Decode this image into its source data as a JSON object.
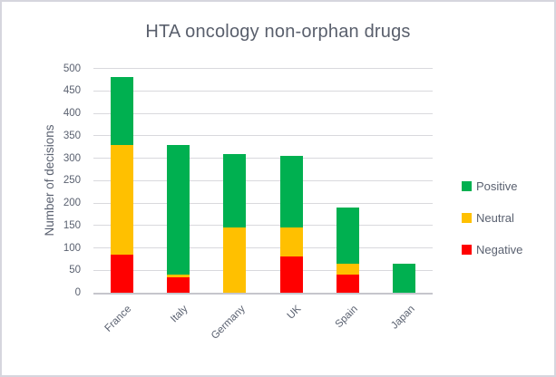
{
  "window": {
    "background": "#FFFFFF",
    "border_color": "#D6D6DE"
  },
  "chart_data": {
    "type": "bar",
    "stacked": true,
    "title": "HTA oncology non-orphan drugs",
    "xlabel": "",
    "ylabel": "Number of decisions",
    "categories": [
      "France",
      "Italy",
      "Germany",
      "UK",
      "Spain",
      "Japan"
    ],
    "series": [
      {
        "name": "Positive",
        "color": "#00B050",
        "values": [
          150,
          290,
          165,
          160,
          125,
          65
        ]
      },
      {
        "name": "Neutral",
        "color": "#FFC000",
        "values": [
          245,
          5,
          145,
          65,
          25,
          0
        ]
      },
      {
        "name": "Negative",
        "color": "#FF0000",
        "values": [
          85,
          35,
          0,
          80,
          40,
          0
        ]
      }
    ],
    "totals": [
      480,
      330,
      310,
      305,
      190,
      65
    ],
    "stack_order_bottom_to_top": [
      "Negative",
      "Neutral",
      "Positive"
    ],
    "ylim": [
      0,
      500
    ],
    "yticks": [
      0,
      50,
      100,
      150,
      200,
      250,
      300,
      350,
      400,
      450,
      500
    ],
    "grid": true,
    "legend_position": "right",
    "x_tick_rotation": -45,
    "style": {
      "grid_color": "#D9D9DD",
      "axis_color": "#C6C6CC",
      "text_color": "#5A6170",
      "title_color": "#595F6C"
    }
  }
}
